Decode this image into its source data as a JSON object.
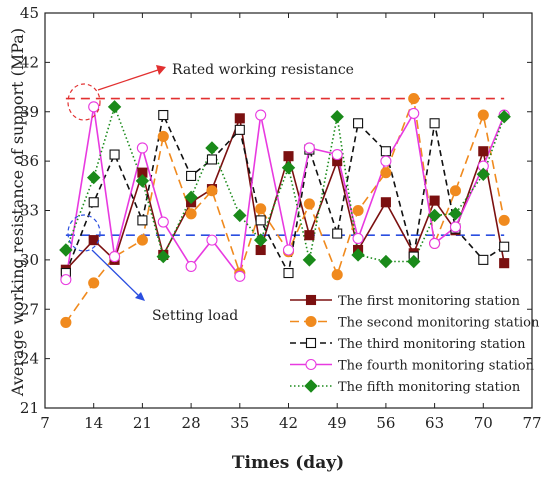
{
  "chart_data": {
    "type": "line",
    "xlabel": "Times (day)",
    "ylabel": "Average working resistance of support (MPa)",
    "xlim": [
      7,
      77
    ],
    "ylim": [
      21,
      45
    ],
    "xticks": [
      7,
      14,
      21,
      28,
      35,
      42,
      49,
      56,
      63,
      70,
      77
    ],
    "yticks": [
      21,
      24,
      27,
      30,
      33,
      36,
      39,
      42,
      45
    ],
    "x": [
      10,
      14,
      17,
      21,
      24,
      28,
      31,
      35,
      38,
      42,
      45,
      49,
      52,
      56,
      60,
      63,
      66,
      70,
      73
    ],
    "series": [
      {
        "name": "The first monitoring station",
        "color": "#7b1010",
        "marker": "filled-square",
        "dash": "solid",
        "values": [
          29.4,
          31.2,
          30.0,
          35.3,
          30.3,
          33.5,
          34.3,
          38.6,
          30.6,
          36.3,
          31.5,
          36.0,
          30.6,
          33.5,
          30.4,
          33.6,
          31.8,
          36.6,
          29.8
        ]
      },
      {
        "name": "The second monitoring station",
        "color": "#f08a1e",
        "marker": "filled-circle",
        "dash": "long-dash",
        "values": [
          26.2,
          28.6,
          30.2,
          31.2,
          37.5,
          32.8,
          34.2,
          29.2,
          33.1,
          30.5,
          33.4,
          29.1,
          33.0,
          35.3,
          39.8,
          31.0,
          34.2,
          38.8,
          32.4
        ]
      },
      {
        "name": "The third monitoring station",
        "color": "#111111",
        "marker": "open-square",
        "dash": "dash",
        "values": [
          29.2,
          33.5,
          36.4,
          32.4,
          38.8,
          35.1,
          36.1,
          37.9,
          32.4,
          29.2,
          36.7,
          31.6,
          38.3,
          36.6,
          30.2,
          38.3,
          31.9,
          30.0,
          30.8
        ]
      },
      {
        "name": "The fourth monitoring station",
        "color": "#e83ae0",
        "marker": "open-circle",
        "dash": "solid",
        "values": [
          28.8,
          39.3,
          30.2,
          36.8,
          32.3,
          29.6,
          31.2,
          29.0,
          38.8,
          30.6,
          36.8,
          36.4,
          31.3,
          36.0,
          38.9,
          31.0,
          32.0,
          35.7,
          38.8
        ]
      },
      {
        "name": "The fifth monitoring station",
        "color": "#1a8a1a",
        "marker": "filled-diamond",
        "dash": "dot",
        "values": [
          30.6,
          35.0,
          39.3,
          34.8,
          30.2,
          33.8,
          36.8,
          32.7,
          31.2,
          35.6,
          30.0,
          38.7,
          30.3,
          29.9,
          29.9,
          32.7,
          32.8,
          35.2,
          38.7
        ]
      }
    ],
    "reference_lines": [
      {
        "label": "Rated working resistance",
        "y": 39.8,
        "color": "#e23030",
        "x_range": [
          10,
          73
        ]
      },
      {
        "label": "Setting load",
        "y": 31.5,
        "color": "#2a4ee0",
        "x_range": [
          10,
          73
        ]
      }
    ],
    "legend_position": "bottom-right",
    "grid": false
  }
}
